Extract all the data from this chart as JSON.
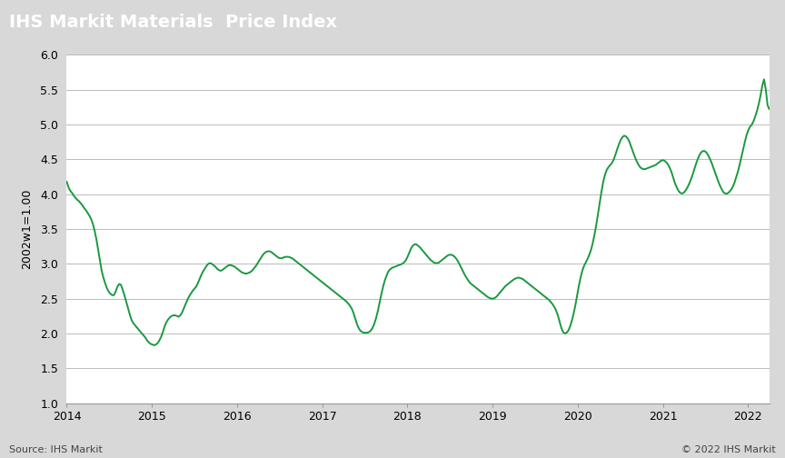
{
  "title": "IHS Markit Materials  Price Index",
  "ylabel": "2002w1=1.00",
  "source_left": "Source: IHS Markit",
  "source_right": "© 2022 IHS Markit",
  "title_bg_color": "#7a7a7a",
  "title_text_color": "#ffffff",
  "line_color_hex": "#1a9940",
  "plot_bg_color": "#ffffff",
  "grid_color": "#bbbbbb",
  "ylim": [
    1.0,
    6.0
  ],
  "yticks": [
    1.0,
    1.5,
    2.0,
    2.5,
    3.0,
    3.5,
    4.0,
    4.5,
    5.0,
    5.5,
    6.0
  ],
  "xtick_labels": [
    "2014",
    "2015",
    "2016",
    "2017",
    "2018",
    "2019",
    "2020",
    "2021",
    "2022"
  ],
  "xtick_positions": [
    2014,
    2015,
    2016,
    2017,
    2018,
    2019,
    2020,
    2021,
    2022
  ],
  "xlim_start": 2014.0,
  "xlim_end": 2022.25,
  "mpi_data": [
    4.18,
    4.1,
    4.05,
    4.02,
    3.98,
    3.95,
    3.92,
    3.9,
    3.87,
    3.84,
    3.8,
    3.77,
    3.73,
    3.69,
    3.64,
    3.57,
    3.47,
    3.35,
    3.2,
    3.05,
    2.9,
    2.8,
    2.72,
    2.65,
    2.6,
    2.57,
    2.55,
    2.55,
    2.6,
    2.67,
    2.71,
    2.7,
    2.63,
    2.55,
    2.46,
    2.37,
    2.28,
    2.2,
    2.15,
    2.12,
    2.09,
    2.06,
    2.03,
    2.0,
    1.97,
    1.94,
    1.9,
    1.87,
    1.85,
    1.84,
    1.83,
    1.84,
    1.86,
    1.9,
    1.95,
    2.02,
    2.1,
    2.16,
    2.2,
    2.23,
    2.25,
    2.26,
    2.26,
    2.25,
    2.24,
    2.26,
    2.3,
    2.36,
    2.42,
    2.48,
    2.53,
    2.57,
    2.61,
    2.64,
    2.67,
    2.72,
    2.78,
    2.84,
    2.89,
    2.93,
    2.97,
    3.0,
    3.01,
    3.0,
    2.98,
    2.96,
    2.93,
    2.91,
    2.9,
    2.91,
    2.93,
    2.95,
    2.97,
    2.98,
    2.98,
    2.97,
    2.96,
    2.94,
    2.92,
    2.9,
    2.88,
    2.87,
    2.86,
    2.86,
    2.87,
    2.88,
    2.9,
    2.93,
    2.96,
    3.0,
    3.04,
    3.08,
    3.12,
    3.15,
    3.17,
    3.18,
    3.18,
    3.17,
    3.15,
    3.13,
    3.11,
    3.09,
    3.08,
    3.08,
    3.09,
    3.1,
    3.1,
    3.1,
    3.09,
    3.08,
    3.06,
    3.04,
    3.02,
    3.0,
    2.98,
    2.96,
    2.94,
    2.92,
    2.9,
    2.88,
    2.86,
    2.84,
    2.82,
    2.8,
    2.78,
    2.76,
    2.74,
    2.72,
    2.7,
    2.68,
    2.66,
    2.64,
    2.62,
    2.6,
    2.58,
    2.56,
    2.54,
    2.52,
    2.5,
    2.48,
    2.46,
    2.43,
    2.4,
    2.36,
    2.3,
    2.22,
    2.14,
    2.08,
    2.04,
    2.02,
    2.01,
    2.01,
    2.01,
    2.02,
    2.04,
    2.08,
    2.14,
    2.22,
    2.32,
    2.44,
    2.56,
    2.67,
    2.76,
    2.83,
    2.89,
    2.92,
    2.94,
    2.95,
    2.96,
    2.97,
    2.98,
    2.99,
    3.0,
    3.02,
    3.05,
    3.1,
    3.16,
    3.22,
    3.26,
    3.28,
    3.28,
    3.26,
    3.24,
    3.21,
    3.18,
    3.15,
    3.12,
    3.09,
    3.06,
    3.04,
    3.02,
    3.01,
    3.01,
    3.02,
    3.04,
    3.06,
    3.08,
    3.1,
    3.12,
    3.13,
    3.13,
    3.12,
    3.1,
    3.07,
    3.03,
    2.98,
    2.93,
    2.88,
    2.83,
    2.79,
    2.75,
    2.72,
    2.7,
    2.68,
    2.66,
    2.64,
    2.62,
    2.6,
    2.58,
    2.56,
    2.54,
    2.52,
    2.51,
    2.5,
    2.5,
    2.51,
    2.53,
    2.56,
    2.59,
    2.62,
    2.65,
    2.68,
    2.7,
    2.72,
    2.74,
    2.76,
    2.78,
    2.79,
    2.8,
    2.8,
    2.79,
    2.78,
    2.76,
    2.74,
    2.72,
    2.7,
    2.68,
    2.66,
    2.64,
    2.62,
    2.6,
    2.58,
    2.56,
    2.54,
    2.52,
    2.5,
    2.48,
    2.45,
    2.42,
    2.38,
    2.33,
    2.26,
    2.17,
    2.08,
    2.02,
    2.0,
    2.01,
    2.04,
    2.1,
    2.18,
    2.28,
    2.4,
    2.54,
    2.68,
    2.8,
    2.9,
    2.97,
    3.02,
    3.07,
    3.13,
    3.2,
    3.3,
    3.42,
    3.56,
    3.72,
    3.88,
    4.04,
    4.18,
    4.28,
    4.35,
    4.39,
    4.42,
    4.45,
    4.5,
    4.57,
    4.65,
    4.72,
    4.78,
    4.82,
    4.84,
    4.83,
    4.8,
    4.75,
    4.68,
    4.61,
    4.54,
    4.48,
    4.43,
    4.39,
    4.37,
    4.36,
    4.36,
    4.37,
    4.38,
    4.39,
    4.4,
    4.41,
    4.42,
    4.44,
    4.46,
    4.48,
    4.49,
    4.48,
    4.46,
    4.43,
    4.38,
    4.32,
    4.24,
    4.16,
    4.1,
    4.05,
    4.02,
    4.01,
    4.02,
    4.05,
    4.09,
    4.14,
    4.2,
    4.27,
    4.35,
    4.43,
    4.5,
    4.56,
    4.6,
    4.62,
    4.62,
    4.6,
    4.56,
    4.51,
    4.45,
    4.38,
    4.31,
    4.24,
    4.17,
    4.11,
    4.06,
    4.02,
    4.01,
    4.01,
    4.03,
    4.06,
    4.1,
    4.16,
    4.24,
    4.32,
    4.42,
    4.53,
    4.64,
    4.75,
    4.85,
    4.92,
    4.97,
    5.0,
    5.05,
    5.12,
    5.2,
    5.3,
    5.42,
    5.56,
    5.65,
    5.5,
    5.28,
    5.22
  ],
  "fig_bg_color": "#d8d8d8"
}
